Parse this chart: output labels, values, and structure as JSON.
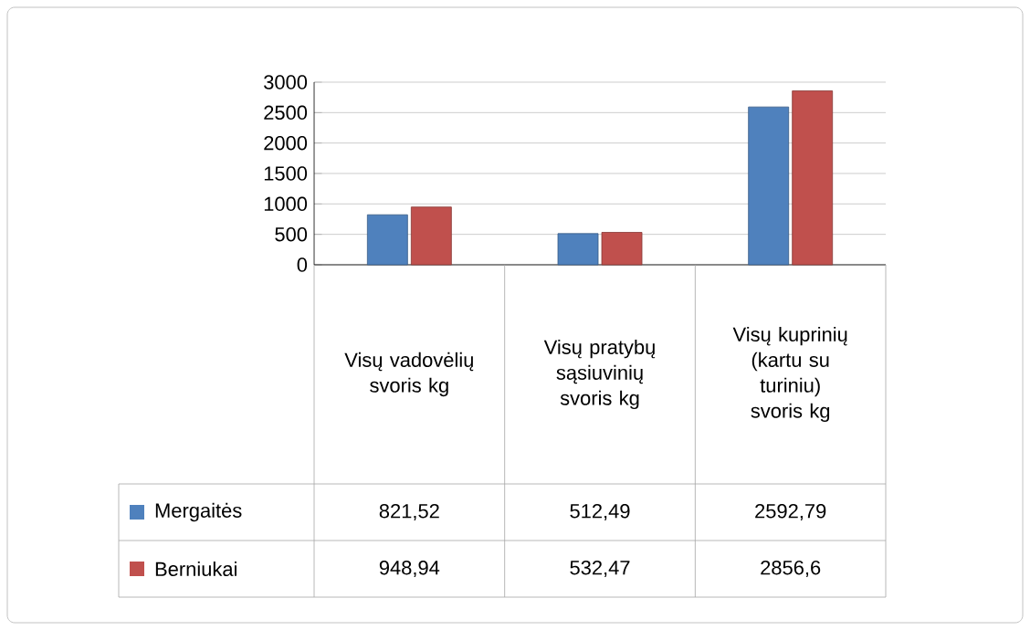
{
  "chart_data": {
    "type": "bar",
    "categories": [
      "Visų vadovėlių svoris kg",
      "Visų pratybų sąsiuvinių svoris kg",
      "Visų kuprinių (kartu su turiniu) svoris kg"
    ],
    "series": [
      {
        "name": "Mergaitės",
        "color": "#4f81bd",
        "values": [
          821.52,
          512.49,
          2592.79
        ],
        "value_labels": [
          "821,52",
          "512,49",
          "2592,79"
        ]
      },
      {
        "name": "Berniukai",
        "color": "#c0504d",
        "values": [
          948.94,
          532.47,
          2856.6
        ],
        "value_labels": [
          "948,94",
          "532,47",
          "2856,6"
        ]
      }
    ],
    "ylim": [
      0,
      3000
    ],
    "yticks": [
      0,
      500,
      1000,
      1500,
      2000,
      2500,
      3000
    ],
    "grid": "y",
    "legend": "bottom",
    "data_labels": true
  }
}
